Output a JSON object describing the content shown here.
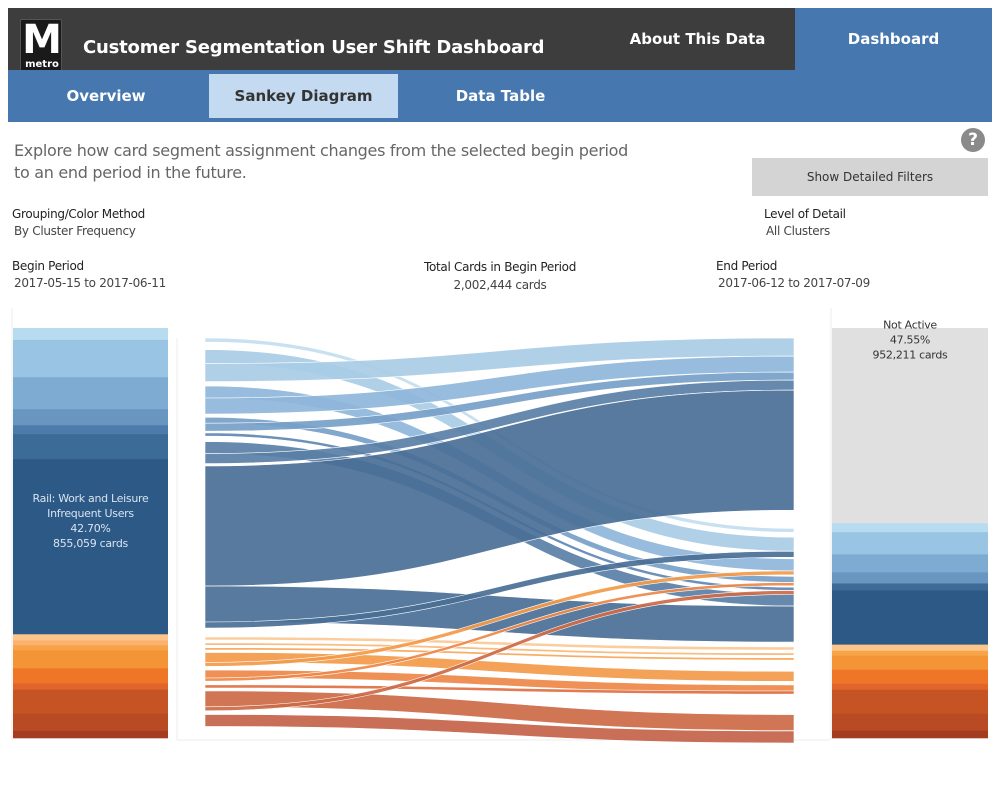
{
  "header": {
    "logo_letter": "M",
    "logo_word": "metro",
    "title": "Customer Segmentation User Shift Dashboard",
    "about_label": "About This Data",
    "dashboard_label": "Dashboard"
  },
  "tabs": [
    {
      "label": "Overview",
      "active": false
    },
    {
      "label": "Sankey Diagram",
      "active": true
    },
    {
      "label": "Data Table",
      "active": false
    }
  ],
  "intro_text": "Explore how card segment assignment changes from the selected begin period to an end period in the future.",
  "help_icon": "?",
  "filters_button": "Show Detailed Filters",
  "controls": {
    "grouping_label": "Grouping/Color Method",
    "grouping_value": "By Cluster Frequency",
    "level_label": "Level of Detail",
    "level_value": "All Clusters",
    "begin_label": "Begin Period",
    "begin_value": "2017-05-15 to 2017-06-11",
    "total_label": "Total Cards in Begin Period",
    "total_value": "2,002,444 cards",
    "end_label": "End Period",
    "end_value": "2017-06-12 to 2017-07-09"
  },
  "chart_data": {
    "type": "sankey",
    "title": "Sankey Diagram",
    "units": "share of cards (%)",
    "begin_total_cards": 2002444,
    "begin_segments": [
      {
        "share": 2.9,
        "color": "#b8dcef"
      },
      {
        "share": 9.1,
        "color": "#9ac4e3"
      },
      {
        "share": 7.8,
        "color": "#7eabd1"
      },
      {
        "share": 3.9,
        "color": "#6896c0"
      },
      {
        "share": 2.2,
        "color": "#4d7cac"
      },
      {
        "share": 6.1,
        "color": "#3d6b97"
      },
      {
        "share": 42.7,
        "color": "#2c5985",
        "name": "Rail: Work and Leisure",
        "name2": "Infrequent Users",
        "pct": "42.70%",
        "cards": "855,059 cards"
      },
      {
        "share": 1.5,
        "color": "#fdc58a"
      },
      {
        "share": 1.2,
        "color": "#fbb26e"
      },
      {
        "share": 1.2,
        "color": "#f7a449"
      },
      {
        "share": 4.4,
        "color": "#f39537"
      },
      {
        "share": 3.7,
        "color": "#ee7626"
      },
      {
        "share": 1.5,
        "color": "#e1652a"
      },
      {
        "share": 5.9,
        "color": "#c55323"
      },
      {
        "share": 4.1,
        "color": "#b84a24"
      },
      {
        "share": 1.8,
        "color": "#a43c20"
      }
    ],
    "end_segments": [
      {
        "share": 47.55,
        "color": "#e0e0e0",
        "name": "Not Active",
        "pct": "47.55%",
        "cards": "952,211 cards"
      },
      {
        "share": 2.2,
        "color": "#b8dcef"
      },
      {
        "share": 5.4,
        "color": "#9ac4e3"
      },
      {
        "share": 4.4,
        "color": "#7eabd1"
      },
      {
        "share": 2.7,
        "color": "#6896c0"
      },
      {
        "share": 1.7,
        "color": "#3d6b97"
      },
      {
        "share": 13.2,
        "color": "#2c5985"
      },
      {
        "share": 1.5,
        "color": "#fdc58a"
      },
      {
        "share": 1.2,
        "color": "#f7a449"
      },
      {
        "share": 3.4,
        "color": "#f39537"
      },
      {
        "share": 3.4,
        "color": "#ee7626"
      },
      {
        "share": 1.5,
        "color": "#e1652a"
      },
      {
        "share": 5.9,
        "color": "#c55323"
      },
      {
        "share": 4.1,
        "color": "#b84a24"
      },
      {
        "share": 1.75,
        "color": "#a43c20"
      }
    ],
    "flows": [
      {
        "from": 0,
        "to": 1,
        "share": 1.0,
        "color": "#c3def0"
      },
      {
        "from": 1,
        "to": 2,
        "share": 3.5,
        "color": "#a9cce6"
      },
      {
        "from": 1,
        "to": 0,
        "share": 4.5,
        "color": "#a9cce6"
      },
      {
        "from": 2,
        "to": 3,
        "share": 3.0,
        "color": "#8fb6da"
      },
      {
        "from": 2,
        "to": 0,
        "share": 4.0,
        "color": "#8fb6da"
      },
      {
        "from": 3,
        "to": 4,
        "share": 1.5,
        "color": "#779fc8"
      },
      {
        "from": 3,
        "to": 0,
        "share": 2.0,
        "color": "#779fc8"
      },
      {
        "from": 4,
        "to": 5,
        "share": 0.8,
        "color": "#5f87b4"
      },
      {
        "from": 5,
        "to": 6,
        "share": 3.0,
        "color": "#5a7fa6"
      },
      {
        "from": 5,
        "to": 0,
        "share": 2.5,
        "color": "#5a7fa6"
      },
      {
        "from": 6,
        "to": 0,
        "share": 30.0,
        "color": "#4a6f96"
      },
      {
        "from": 6,
        "to": 6,
        "share": 9.0,
        "color": "#4a6f96"
      },
      {
        "from": 6,
        "to": 2,
        "share": 1.5,
        "color": "#4a6f96"
      },
      {
        "from": 7,
        "to": 7,
        "share": 0.8,
        "color": "#fbc995"
      },
      {
        "from": 8,
        "to": 8,
        "share": 0.6,
        "color": "#f9b676"
      },
      {
        "from": 9,
        "to": 9,
        "share": 0.6,
        "color": "#f5a75a"
      },
      {
        "from": 10,
        "to": 10,
        "share": 2.5,
        "color": "#f29a4a"
      },
      {
        "from": 10,
        "to": 3,
        "share": 1.0,
        "color": "#f29a4a"
      },
      {
        "from": 11,
        "to": 11,
        "share": 2.0,
        "color": "#ee8848"
      },
      {
        "from": 11,
        "to": 4,
        "share": 0.8,
        "color": "#ee8848"
      },
      {
        "from": 12,
        "to": 12,
        "share": 0.8,
        "color": "#e07042"
      },
      {
        "from": 13,
        "to": 13,
        "share": 4.0,
        "color": "#cd6a47"
      },
      {
        "from": 13,
        "to": 5,
        "share": 1.0,
        "color": "#cd6a47"
      },
      {
        "from": 14,
        "to": 14,
        "share": 3.0,
        "color": "#c4634a"
      },
      {
        "from": 15,
        "to": 15,
        "share": 1.2,
        "color": "#b5593f"
      }
    ]
  }
}
